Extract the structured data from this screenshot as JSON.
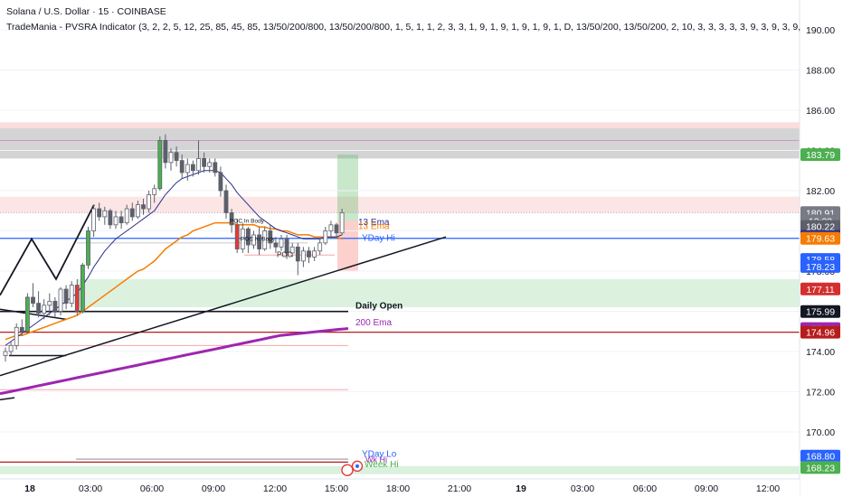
{
  "header": {
    "title": "Solana / U.S. Dollar · 15 · COINBASE",
    "indicator": "TradeMania - PVSRA Indicator (3, 2, 2, 5, 12, 25, 85, 45, 85, 13/50/200/800, 13/50/200/800, 1, 5, 1, 1, 2, 3, 3, 1, 9, 1, 9, 1, 9, 1, 9, 1, D, 13/50/200, 13/50/200, 2, 10, 3, 3, 3, 3, 3, 9, 3, 9, 3, 9, 3, 9"
  },
  "chart_data": {
    "type": "candlestick",
    "ylim": [
      167.8,
      191.0
    ],
    "y_ticks": [
      190.0,
      188.0,
      186.0,
      184.0,
      182.0,
      180.0,
      178.0,
      176.0,
      174.0,
      172.0,
      170.0
    ],
    "x_tick_labels": [
      "18",
      "03:00",
      "06:00",
      "09:00",
      "12:00",
      "15:00",
      "18:00",
      "21:00",
      "19",
      "03:00",
      "06:00",
      "09:00",
      "12:00"
    ],
    "price_labels": [
      {
        "value": 183.79,
        "text": "183.79",
        "color": "#4caf50"
      },
      {
        "value": 180.91,
        "text": "180.91",
        "color": "#787b86"
      },
      {
        "value": 180.5,
        "text": "12:23",
        "color": "#787b86"
      },
      {
        "value": 180.22,
        "text": "180.22",
        "color": "#5d606b"
      },
      {
        "value": 179.73,
        "text": "179.73",
        "color": "#2a2e8c"
      },
      {
        "value": 179.63,
        "text": "179.63",
        "color": "#f57c00"
      },
      {
        "value": 178.58,
        "text": "178.58",
        "color": "#2962ff"
      },
      {
        "value": 178.23,
        "text": "178.23",
        "color": "#2962ff"
      },
      {
        "value": 177.11,
        "text": "177.11",
        "color": "#d32f2f"
      },
      {
        "value": 175.99,
        "text": "175.99",
        "color": "#131722"
      },
      {
        "value": 175.14,
        "text": "175.14",
        "color": "#9c27b0"
      },
      {
        "value": 174.96,
        "text": "174.96",
        "color": "#b71c1c"
      },
      {
        "value": 168.8,
        "text": "168.80",
        "color": "#2962ff"
      },
      {
        "value": 168.23,
        "text": "168.23",
        "color": "#4caf50"
      }
    ],
    "annotations": {
      "yday_hi": "YDay Hi",
      "daily_open": "Daily Open",
      "ema200": "200 Ema",
      "ema13": "13 Ema",
      "ema13b": "13 Ema",
      "poc1": "POC In Body",
      "poc2": "POC In Body",
      "poc3": "POC",
      "yday_lo": "YDay Lo",
      "week_hi": "Week Hi",
      "wk_hi_small": "Wk Hi"
    },
    "candles": [
      [
        173.8,
        174.2,
        173.5,
        174.0
      ],
      [
        174.0,
        174.5,
        173.8,
        174.3
      ],
      [
        174.3,
        175.4,
        174.1,
        175.2
      ],
      [
        175.2,
        175.6,
        174.8,
        175.0
      ],
      [
        175.0,
        176.9,
        174.9,
        176.7
      ],
      [
        176.7,
        177.4,
        176.2,
        176.4
      ],
      [
        176.4,
        177.0,
        175.7,
        175.9
      ],
      [
        175.9,
        176.6,
        175.6,
        176.3
      ],
      [
        176.3,
        176.9,
        175.8,
        176.5
      ],
      [
        176.5,
        176.7,
        175.7,
        176.0
      ],
      [
        176.0,
        177.2,
        175.8,
        177.1
      ],
      [
        177.1,
        177.3,
        176.1,
        176.4
      ],
      [
        176.4,
        177.5,
        176.2,
        177.3
      ],
      [
        177.3,
        177.6,
        175.8,
        176.0
      ],
      [
        176.0,
        178.4,
        175.9,
        178.3
      ],
      [
        178.3,
        180.2,
        178.1,
        180.0
      ],
      [
        180.0,
        181.3,
        179.7,
        181.1
      ],
      [
        181.1,
        181.4,
        180.5,
        180.7
      ],
      [
        180.7,
        181.2,
        180.3,
        181.0
      ],
      [
        181.0,
        181.1,
        180.1,
        180.3
      ],
      [
        180.3,
        181.0,
        180.1,
        180.7
      ],
      [
        180.7,
        181.0,
        180.1,
        180.4
      ],
      [
        180.4,
        181.3,
        180.3,
        181.1
      ],
      [
        181.1,
        181.4,
        180.5,
        180.7
      ],
      [
        180.7,
        181.5,
        180.6,
        181.3
      ],
      [
        181.3,
        181.6,
        180.8,
        181.1
      ],
      [
        181.1,
        182.0,
        180.9,
        181.8
      ],
      [
        181.8,
        182.3,
        181.4,
        182.1
      ],
      [
        182.1,
        184.7,
        182.0,
        184.5
      ],
      [
        184.5,
        184.8,
        183.1,
        183.4
      ],
      [
        183.4,
        184.1,
        183.0,
        183.9
      ],
      [
        183.9,
        184.2,
        183.2,
        183.5
      ],
      [
        183.5,
        183.8,
        182.6,
        182.9
      ],
      [
        182.9,
        183.6,
        182.5,
        183.3
      ],
      [
        183.3,
        183.5,
        182.7,
        183.0
      ],
      [
        183.0,
        184.5,
        182.8,
        183.6
      ],
      [
        183.6,
        183.9,
        182.9,
        183.2
      ],
      [
        183.2,
        183.6,
        182.9,
        183.4
      ],
      [
        183.4,
        183.6,
        182.7,
        182.9
      ],
      [
        182.9,
        183.2,
        181.7,
        182.0
      ],
      [
        182.0,
        182.3,
        180.6,
        180.9
      ],
      [
        180.9,
        181.1,
        179.9,
        180.3
      ],
      [
        180.3,
        180.6,
        178.9,
        179.1
      ],
      [
        179.1,
        180.4,
        178.9,
        180.1
      ],
      [
        180.1,
        180.2,
        178.9,
        179.3
      ],
      [
        179.3,
        180.0,
        179.1,
        179.8
      ],
      [
        179.8,
        180.2,
        178.8,
        179.1
      ],
      [
        179.1,
        180.2,
        179.0,
        180.0
      ],
      [
        180.0,
        180.3,
        179.1,
        179.4
      ],
      [
        179.4,
        179.7,
        178.9,
        179.2
      ],
      [
        179.2,
        179.8,
        179.0,
        179.6
      ],
      [
        179.6,
        179.8,
        178.6,
        178.9
      ],
      [
        178.9,
        179.4,
        178.7,
        179.2
      ],
      [
        179.2,
        179.4,
        177.8,
        178.5
      ],
      [
        178.5,
        179.2,
        178.2,
        179.0
      ],
      [
        179.0,
        179.2,
        178.4,
        178.7
      ],
      [
        178.7,
        179.2,
        178.5,
        179.0
      ],
      [
        179.0,
        179.6,
        178.8,
        179.4
      ],
      [
        179.4,
        180.2,
        179.3,
        180.0
      ],
      [
        180.0,
        180.5,
        179.6,
        180.3
      ],
      [
        180.3,
        180.4,
        179.6,
        179.9
      ],
      [
        179.9,
        181.1,
        179.8,
        180.9
      ]
    ],
    "ema13": [
      174.3,
      174.5,
      174.7,
      174.9,
      175.1,
      175.3,
      175.5,
      175.7,
      175.9,
      176.1,
      176.3,
      176.5,
      176.7,
      176.9,
      177.3,
      177.7,
      178.2,
      178.6,
      179.0,
      179.3,
      179.6,
      179.8,
      180.0,
      180.2,
      180.4,
      180.6,
      180.8,
      181.0,
      181.4,
      181.8,
      182.1,
      182.4,
      182.6,
      182.7,
      182.8,
      182.9,
      183.0,
      183.0,
      183.0,
      182.9,
      182.6,
      182.3,
      181.9,
      181.6,
      181.3,
      181.0,
      180.7,
      180.5,
      180.3,
      180.1,
      180.0,
      179.9,
      179.8,
      179.7,
      179.6,
      179.6,
      179.6,
      179.6,
      179.7,
      179.7,
      179.7,
      179.8
    ],
    "ema50": [
      174.6,
      174.7,
      174.8,
      174.8,
      174.9,
      175.0,
      175.1,
      175.2,
      175.3,
      175.4,
      175.5,
      175.6,
      175.7,
      175.8,
      176.0,
      176.2,
      176.4,
      176.6,
      176.8,
      177.0,
      177.2,
      177.4,
      177.6,
      177.8,
      178.0,
      178.1,
      178.3,
      178.5,
      178.8,
      179.1,
      179.3,
      179.5,
      179.7,
      179.8,
      180.0,
      180.1,
      180.2,
      180.3,
      180.4,
      180.4,
      180.4,
      180.4,
      180.3,
      180.3,
      180.3,
      180.3,
      180.2,
      180.2,
      180.1,
      180.1,
      180.0,
      180.0,
      179.9,
      179.8,
      179.8,
      179.8,
      179.7,
      179.7,
      179.7,
      179.7,
      179.7,
      179.6
    ],
    "ema200": [
      171.9,
      172.0,
      172.1,
      172.2,
      172.3,
      172.4,
      172.5,
      172.6,
      172.7,
      172.8,
      172.9,
      173.0,
      173.1,
      173.2,
      173.3,
      173.4,
      173.5,
      173.6,
      173.7,
      173.8,
      173.9,
      174.0,
      174.1,
      174.2,
      174.3,
      174.4,
      174.5,
      174.6,
      174.7,
      174.8,
      174.85,
      174.9,
      174.95,
      175.0,
      175.05,
      175.1,
      175.14
    ]
  }
}
